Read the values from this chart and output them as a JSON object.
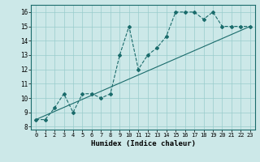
{
  "xlabel": "Humidex (Indice chaleur)",
  "ylabel": "",
  "xlim": [
    -0.5,
    23.5
  ],
  "ylim": [
    7.8,
    16.5
  ],
  "xticks": [
    0,
    1,
    2,
    3,
    4,
    5,
    6,
    7,
    8,
    9,
    10,
    11,
    12,
    13,
    14,
    15,
    16,
    17,
    18,
    19,
    20,
    21,
    22,
    23
  ],
  "yticks": [
    8,
    9,
    10,
    11,
    12,
    13,
    14,
    15,
    16
  ],
  "bg_color": "#cce8e8",
  "grid_color": "#99cccc",
  "line_color": "#1a6b6b",
  "line1_x": [
    0,
    1,
    2,
    3,
    4,
    5,
    6,
    7,
    8,
    9,
    10,
    11,
    12,
    13,
    14,
    15,
    16,
    17,
    18,
    19,
    20,
    21,
    22,
    23
  ],
  "line1_y": [
    8.5,
    8.5,
    9.3,
    10.3,
    9.0,
    10.3,
    10.3,
    10.0,
    10.3,
    13.0,
    15.0,
    12.0,
    13.0,
    13.5,
    14.3,
    16.0,
    16.0,
    16.0,
    15.5,
    16.0,
    15.0,
    15.0,
    15.0,
    15.0
  ],
  "line2_x": [
    0,
    23
  ],
  "line2_y": [
    8.5,
    15.0
  ]
}
